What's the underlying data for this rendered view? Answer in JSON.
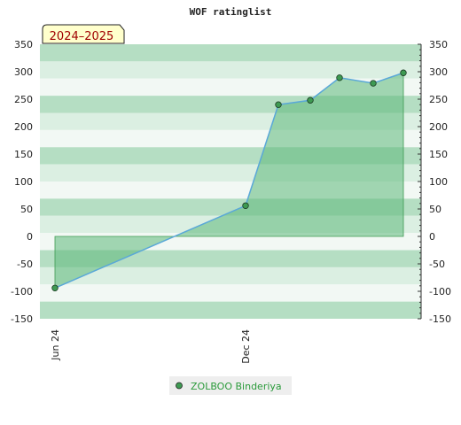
{
  "chart_data": {
    "type": "area",
    "title": "WOF ratinglist",
    "badge": "2024–2025",
    "xlabel": "",
    "ylabel": "",
    "ylim": [
      -150,
      350
    ],
    "y_ticks": [
      350,
      300,
      250,
      200,
      150,
      100,
      50,
      0,
      -50,
      -100,
      -150
    ],
    "x_tick_labels": [
      {
        "label": "Jun 24",
        "index": 0
      },
      {
        "label": "Dec 24",
        "index": 1
      }
    ],
    "series": [
      {
        "name": "ZOLBOO Binderiya",
        "values": [
          -94,
          56,
          240,
          248,
          289,
          279,
          298
        ]
      }
    ],
    "legend_position": "bottom-center",
    "grid": true,
    "colors": {
      "line": "#5aa8d8",
      "fill": "#5cb87a",
      "marker": "#3e9a52",
      "band_dark": "#b5dec3",
      "band_light": "#dbefe2",
      "band_white": "#f2f8f4",
      "badge_bg": "#ffffcc",
      "legend_text": "#2a9a3a"
    }
  }
}
